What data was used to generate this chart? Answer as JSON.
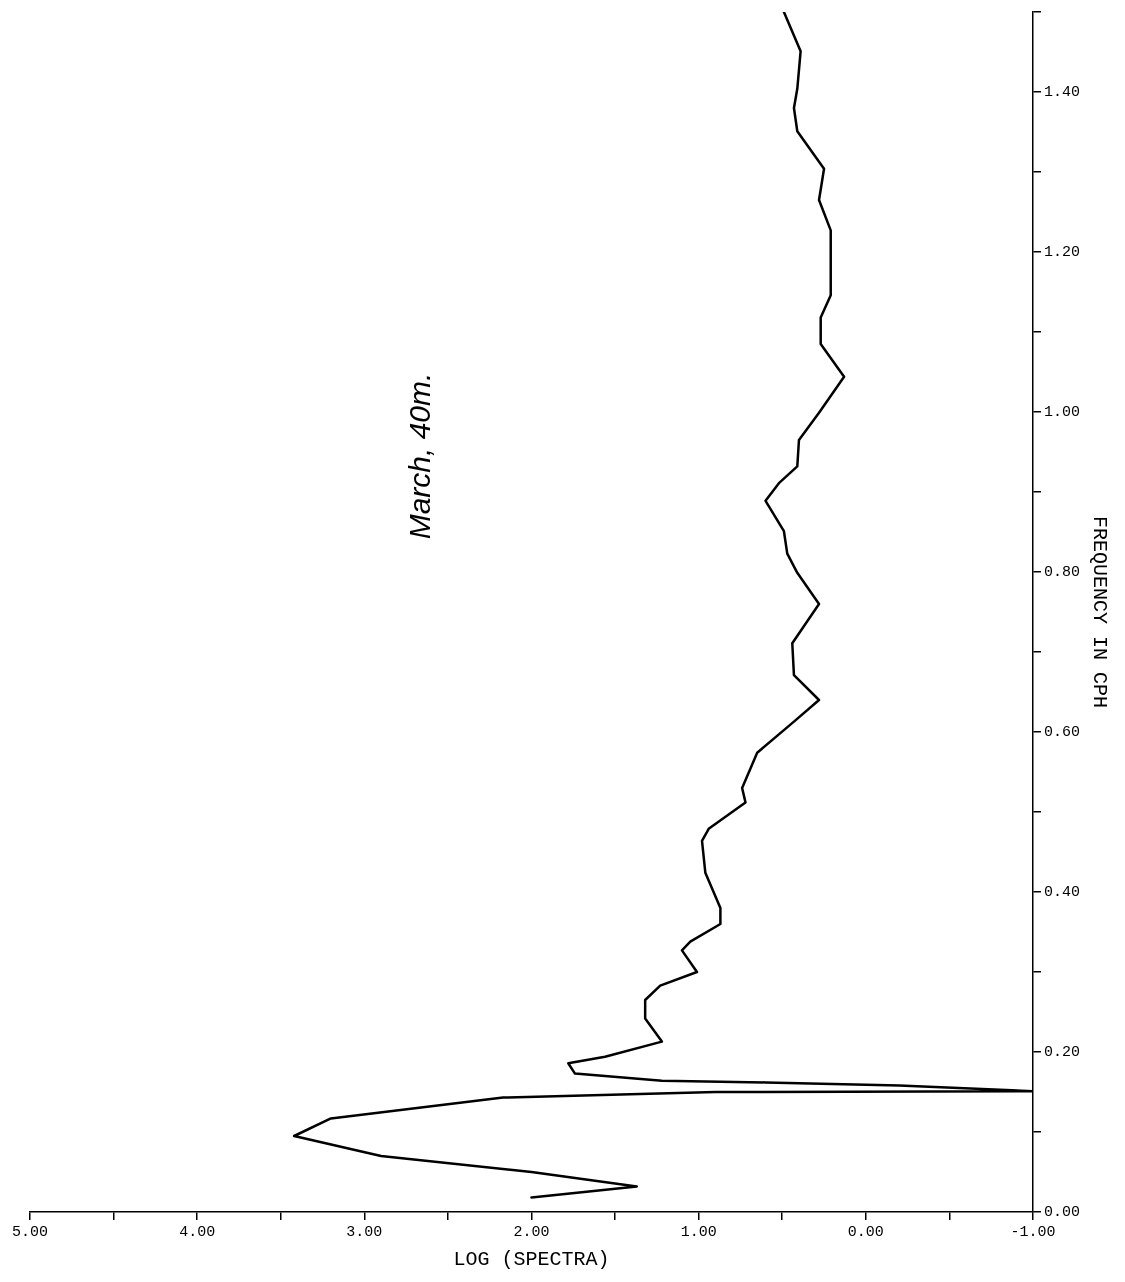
{
  "chart_data": {
    "type": "line",
    "title": "March, 40m.",
    "xlabel": "LOG (SPECTRA)",
    "ylabel": "FREQUENCY IN CPH",
    "orientation": "horizontal",
    "color": "#000000",
    "marker": "none",
    "line_style": "solid",
    "grid": false,
    "x": [
      0.018,
      0.032,
      0.05,
      0.07,
      0.095,
      0.117,
      0.143,
      0.15,
      0.151,
      0.158,
      0.162,
      0.164,
      0.173,
      0.186,
      0.194,
      0.213,
      0.242,
      0.265,
      0.283,
      0.3,
      0.327,
      0.338,
      0.36,
      0.38,
      0.424,
      0.464,
      0.479,
      0.512,
      0.53,
      0.574,
      0.613,
      0.64,
      0.671,
      0.711,
      0.76,
      0.799,
      0.823,
      0.851,
      0.889,
      0.911,
      0.932,
      0.965,
      0.999,
      1.044,
      1.085,
      1.118,
      1.146,
      1.227,
      1.265,
      1.304,
      1.351,
      1.38,
      1.404,
      1.451,
      1.5
    ],
    "values": [
      2.0,
      1.37,
      2.0,
      2.9,
      3.42,
      3.2,
      2.17,
      0.9,
      -1.0,
      -0.2,
      0.6,
      1.22,
      1.74,
      1.78,
      1.56,
      1.22,
      1.32,
      1.32,
      1.23,
      1.01,
      1.1,
      1.05,
      0.87,
      0.87,
      0.96,
      0.98,
      0.94,
      0.72,
      0.74,
      0.65,
      0.43,
      0.28,
      0.43,
      0.44,
      0.28,
      0.41,
      0.47,
      0.49,
      0.6,
      0.52,
      0.41,
      0.4,
      0.28,
      0.13,
      0.27,
      0.27,
      0.21,
      0.21,
      0.28,
      0.25,
      0.41,
      0.43,
      0.41,
      0.39,
      0.49
    ],
    "xlim": [
      5,
      -1
    ],
    "xticks": [
      {
        "value": 5,
        "label": "5.00"
      },
      {
        "value": 4.5,
        "label": null
      },
      {
        "value": 4,
        "label": "4.00"
      },
      {
        "value": 3.5,
        "label": null
      },
      {
        "value": 3,
        "label": "3.00"
      },
      {
        "value": 2.5,
        "label": null
      },
      {
        "value": 2,
        "label": "2.00"
      },
      {
        "value": 1.5,
        "label": null
      },
      {
        "value": 1,
        "label": "1.00"
      },
      {
        "value": 0.5,
        "label": null
      },
      {
        "value": 0,
        "label": "0.00"
      },
      {
        "value": -0.5,
        "label": null
      },
      {
        "value": -1,
        "label": "-1.00"
      }
    ],
    "ylim": [
      0,
      1.5
    ],
    "yticks": [
      {
        "value": 0,
        "label": "0.00"
      },
      {
        "value": 0.1,
        "label": null
      },
      {
        "value": 0.2,
        "label": "0.20"
      },
      {
        "value": 0.3,
        "label": null
      },
      {
        "value": 0.4,
        "label": "0.40"
      },
      {
        "value": 0.5,
        "label": null
      },
      {
        "value": 0.6,
        "label": "0.60"
      },
      {
        "value": 0.7,
        "label": null
      },
      {
        "value": 0.8,
        "label": "0.80"
      },
      {
        "value": 0.9,
        "label": null
      },
      {
        "value": 1.0,
        "label": "1.00"
      },
      {
        "value": 1.1,
        "label": null
      },
      {
        "value": 1.2,
        "label": "1.20"
      },
      {
        "value": 1.3,
        "label": null
      },
      {
        "value": 1.4,
        "label": "1.40"
      },
      {
        "value": 1.5,
        "label": null
      }
    ]
  }
}
